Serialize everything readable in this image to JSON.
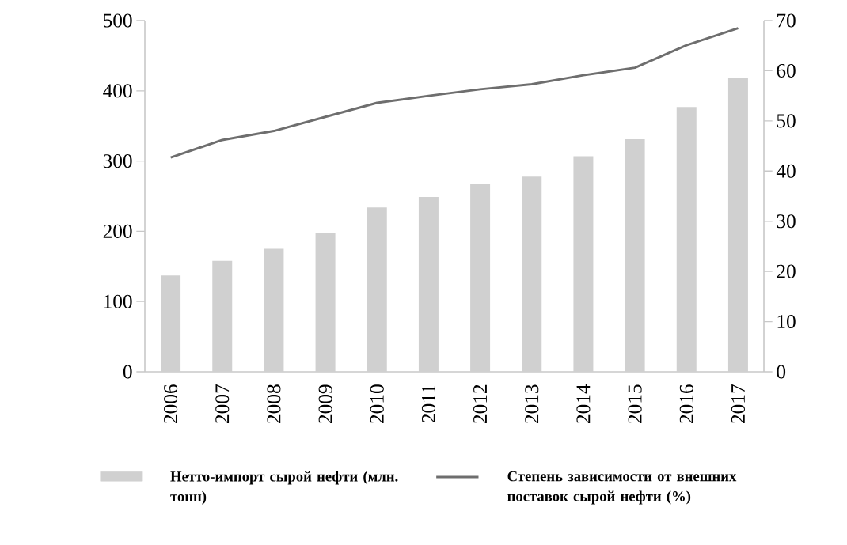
{
  "chart_data": {
    "type": "bar",
    "categories": [
      "2006",
      "2007",
      "2008",
      "2009",
      "2010",
      "2011",
      "2012",
      "2013",
      "2014",
      "2015",
      "2016",
      "2017"
    ],
    "series": [
      {
        "name": "Нетто-импорт сырой нефти (млн. тонн)",
        "color": "#d0d0d0",
        "values": [
          137,
          158,
          175,
          198,
          234,
          249,
          268,
          278,
          307,
          331,
          377,
          418
        ]
      },
      {
        "name": "Степень зависимости от внешних поставок сырой нефти (%)",
        "type": "line",
        "axis": "y2",
        "color": "#6e6e6e",
        "values": [
          42.7,
          46.2,
          48.0,
          50.8,
          53.6,
          55.0,
          56.3,
          57.3,
          59.1,
          60.6,
          65.1,
          68.5
        ]
      }
    ],
    "ylim": [
      0,
      500
    ],
    "yticks": [
      0,
      100,
      200,
      300,
      400,
      500
    ],
    "y2lim": [
      0,
      70
    ],
    "y2ticks": [
      0,
      10,
      20,
      30,
      40,
      50,
      60,
      70
    ],
    "legend": "bottom"
  }
}
